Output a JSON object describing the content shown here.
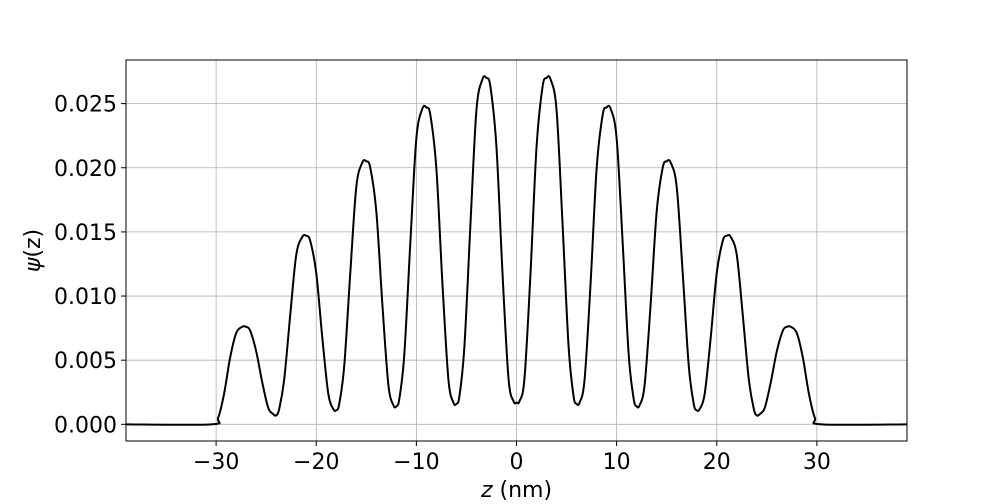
{
  "chart_data": {
    "type": "line",
    "title": "",
    "xlabel_var": "z",
    "xlabel_unit": " (nm)",
    "ylabel_var": "ψ",
    "ylabel_arg": "(z)",
    "xlim": [
      -39,
      39
    ],
    "ylim": [
      -0.0013,
      0.0284
    ],
    "xticks": [
      -30,
      -20,
      -10,
      0,
      10,
      20,
      30
    ],
    "xtick_labels": [
      "−30",
      "−20",
      "−10",
      "0",
      "10",
      "20",
      "30"
    ],
    "yticks": [
      0.0,
      0.005,
      0.01,
      0.015,
      0.02,
      0.025
    ],
    "ytick_labels": [
      "0.000",
      "0.005",
      "0.010",
      "0.015",
      "0.020",
      "0.025"
    ],
    "grid": true,
    "line_color": "#000000",
    "grid_color": "#b0b0b0",
    "series": [
      {
        "x": [
          -39,
          -30.5,
          -29.8,
          -29.2,
          -28.6,
          -28,
          -27.4,
          -27,
          -26.6,
          -26,
          -25.4,
          -24.8,
          -24.3,
          -24,
          -23.7,
          -23.2,
          -22.6,
          -22,
          -21.4,
          -21,
          -20.6,
          -20,
          -19.4,
          -18.8,
          -18.3,
          -18,
          -17.7,
          -17.2,
          -16.6,
          -16,
          -15.4,
          -15,
          -14.6,
          -14,
          -13.4,
          -12.8,
          -12.3,
          -12,
          -11.7,
          -11.2,
          -10.6,
          -10,
          -9.4,
          -9,
          -8.6,
          -8,
          -7.4,
          -6.8,
          -6.3,
          -6,
          -5.7,
          -5.2,
          -4.6,
          -4,
          -3.4,
          -3,
          -2.6,
          -2,
          -1.4,
          -0.8,
          -0.3,
          0,
          0.3,
          0.8,
          1.4,
          2,
          2.6,
          3,
          3.4,
          4,
          4.6,
          5.2,
          5.7,
          6,
          6.3,
          6.8,
          7.4,
          8,
          8.6,
          9,
          9.4,
          10,
          10.6,
          11.2,
          11.7,
          12,
          12.3,
          12.8,
          13.4,
          14,
          14.6,
          15,
          15.4,
          16,
          16.6,
          17.2,
          17.7,
          18,
          18.3,
          18.8,
          19.4,
          20,
          20.6,
          21,
          21.4,
          22,
          22.6,
          23.2,
          23.7,
          24,
          24.3,
          24.8,
          25.4,
          26,
          26.6,
          27,
          27.4,
          28,
          28.6,
          29.2,
          29.8,
          30.5,
          39
        ],
        "y": [
          0,
          0,
          0.0005,
          0.0024,
          0.0052,
          0.0071,
          0.0076,
          0.0076,
          0.0073,
          0.0057,
          0.0033,
          0.0013,
          0.0008,
          0.0007,
          0.0012,
          0.0035,
          0.0085,
          0.0132,
          0.0146,
          0.0147,
          0.0143,
          0.0118,
          0.0068,
          0.0024,
          0.0012,
          0.0011,
          0.0016,
          0.0046,
          0.0118,
          0.0185,
          0.0204,
          0.0205,
          0.02,
          0.0166,
          0.0094,
          0.0031,
          0.0015,
          0.0014,
          0.002,
          0.0055,
          0.0142,
          0.0223,
          0.0246,
          0.0247,
          0.0241,
          0.0199,
          0.011,
          0.0035,
          0.0017,
          0.0016,
          0.0022,
          0.0061,
          0.0156,
          0.0245,
          0.0269,
          0.027,
          0.0263,
          0.0216,
          0.0118,
          0.0036,
          0.0018,
          0.0017,
          0.0018,
          0.0036,
          0.0118,
          0.0216,
          0.0263,
          0.027,
          0.0269,
          0.0245,
          0.0156,
          0.0061,
          0.0022,
          0.0016,
          0.0017,
          0.0035,
          0.011,
          0.0199,
          0.0241,
          0.0247,
          0.0246,
          0.0223,
          0.0142,
          0.0055,
          0.002,
          0.0014,
          0.0015,
          0.0031,
          0.0094,
          0.0166,
          0.02,
          0.0205,
          0.0204,
          0.0185,
          0.0118,
          0.0046,
          0.0016,
          0.0011,
          0.0012,
          0.0024,
          0.0068,
          0.0118,
          0.0143,
          0.0147,
          0.0146,
          0.0132,
          0.0085,
          0.0035,
          0.0012,
          0.0007,
          0.0008,
          0.0013,
          0.0033,
          0.0057,
          0.0073,
          0.0076,
          0.0076,
          0.0071,
          0.0052,
          0.0024,
          0.0005,
          0,
          0
        ]
      }
    ]
  }
}
